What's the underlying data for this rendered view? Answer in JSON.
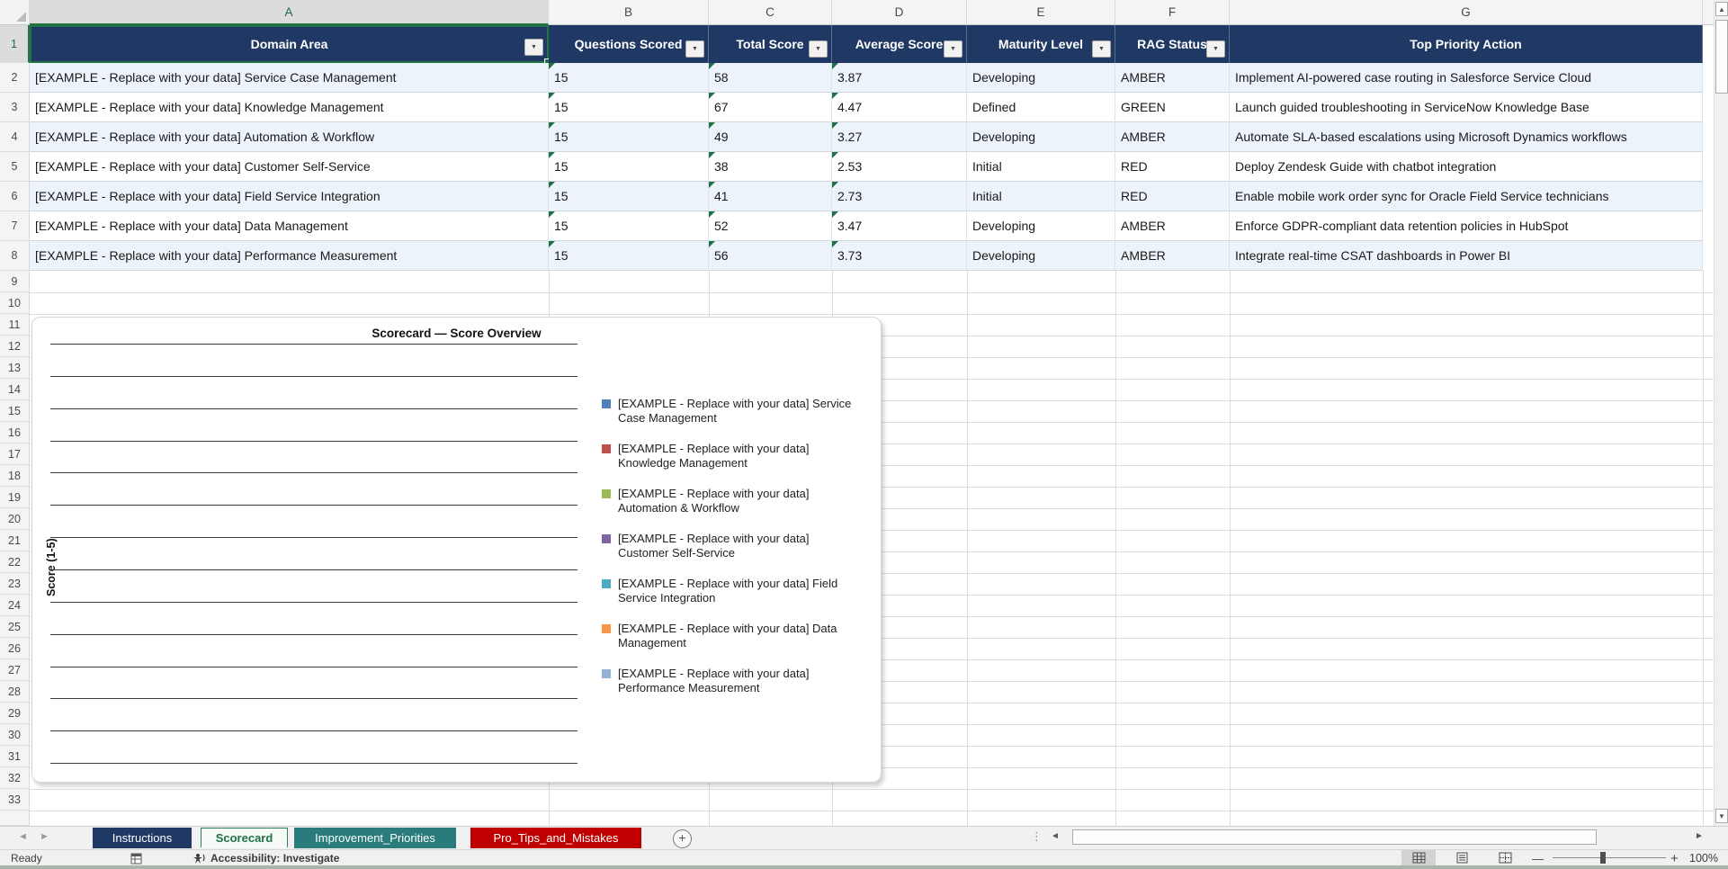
{
  "columns": [
    "A",
    "B",
    "C",
    "D",
    "E",
    "F",
    "G"
  ],
  "row_numbers": [
    1,
    2,
    3,
    4,
    5,
    6,
    7,
    8,
    9,
    10,
    11,
    12,
    13,
    14,
    15,
    16,
    17,
    18,
    19,
    20,
    21,
    22,
    23,
    24,
    25,
    26,
    27,
    28,
    29,
    30,
    31,
    32,
    33
  ],
  "table": {
    "headers": [
      "Domain Area",
      "Questions Scored",
      "Total Score",
      "Average Score",
      "Maturity Level",
      "RAG Status",
      "Top Priority Action"
    ],
    "rows": [
      {
        "domain": "[EXAMPLE - Replace with your data] Service Case Management",
        "questions": "15",
        "total": "58",
        "avg": "3.87",
        "maturity": "Developing",
        "rag": "AMBER",
        "action": "Implement AI-powered case routing in Salesforce Service Cloud"
      },
      {
        "domain": "[EXAMPLE - Replace with your data] Knowledge Management",
        "questions": "15",
        "total": "67",
        "avg": "4.47",
        "maturity": "Defined",
        "rag": "GREEN",
        "action": "Launch guided troubleshooting in ServiceNow Knowledge Base"
      },
      {
        "domain": "[EXAMPLE - Replace with your data] Automation & Workflow",
        "questions": "15",
        "total": "49",
        "avg": "3.27",
        "maturity": "Developing",
        "rag": "AMBER",
        "action": "Automate SLA-based escalations using Microsoft Dynamics workflows"
      },
      {
        "domain": "[EXAMPLE - Replace with your data] Customer Self-Service",
        "questions": "15",
        "total": "38",
        "avg": "2.53",
        "maturity": "Initial",
        "rag": "RED",
        "action": "Deploy Zendesk Guide with chatbot integration"
      },
      {
        "domain": "[EXAMPLE - Replace with your data] Field Service Integration",
        "questions": "15",
        "total": "41",
        "avg": "2.73",
        "maturity": "Initial",
        "rag": "RED",
        "action": "Enable mobile work order sync for Oracle Field Service technicians"
      },
      {
        "domain": "[EXAMPLE - Replace with your data] Data Management",
        "questions": "15",
        "total": "52",
        "avg": "3.47",
        "maturity": "Developing",
        "rag": "AMBER",
        "action": "Enforce GDPR-compliant data retention policies in HubSpot"
      },
      {
        "domain": "[EXAMPLE - Replace with your data] Performance Measurement",
        "questions": "15",
        "total": "56",
        "avg": "3.73",
        "maturity": "Developing",
        "rag": "AMBER",
        "action": "Integrate real-time CSAT dashboards in Power BI"
      }
    ]
  },
  "chart": {
    "title": "Scorecard — Score Overview",
    "y_axis_label": "Score (1-5)",
    "series": [
      {
        "name": "[EXAMPLE - Replace with your data] Service Case Management",
        "color": "#4F81BD"
      },
      {
        "name": "[EXAMPLE - Replace with your data] Knowledge Management",
        "color": "#C0504D"
      },
      {
        "name": "[EXAMPLE - Replace with your data] Automation & Workflow",
        "color": "#9BBB59"
      },
      {
        "name": "[EXAMPLE - Replace with your data] Customer Self-Service",
        "color": "#8064A2"
      },
      {
        "name": "[EXAMPLE - Replace with your data] Field Service Integration",
        "color": "#4BACC6"
      },
      {
        "name": "[EXAMPLE - Replace with your data] Data Management",
        "color": "#F79646"
      },
      {
        "name": "[EXAMPLE - Replace with your data] Performance Measurement",
        "color": "#95B3D7"
      }
    ]
  },
  "tabs": [
    {
      "label": "Instructions",
      "color": "#1F3864",
      "active": false
    },
    {
      "label": "Scorecard",
      "color": "#F6FBF8",
      "active": true
    },
    {
      "label": "Improvement_Priorities",
      "color": "#2A7C7C",
      "active": false
    },
    {
      "label": "Pro_Tips_and_Mistakes",
      "color": "#C00000",
      "active": false
    }
  ],
  "status_bar": {
    "ready": "Ready",
    "accessibility": "Accessibility: Investigate",
    "zoom_level": "100%"
  },
  "icons": {
    "filter": "▼",
    "tab_nav_left": "◄",
    "tab_nav_right": "►",
    "scroll_up": "▲",
    "scroll_down": "▼",
    "scroll_left": "◄",
    "scroll_right": "►",
    "new_sheet": "+",
    "zoom_out": "—",
    "zoom_in": "+",
    "split_dots": "⋮"
  },
  "colors": {
    "header_navy": "#1F3864",
    "selection_green": "#217346",
    "band_blue": "#EDF3FA",
    "tab_teal": "#2A7C7C",
    "tab_red": "#C00000"
  }
}
